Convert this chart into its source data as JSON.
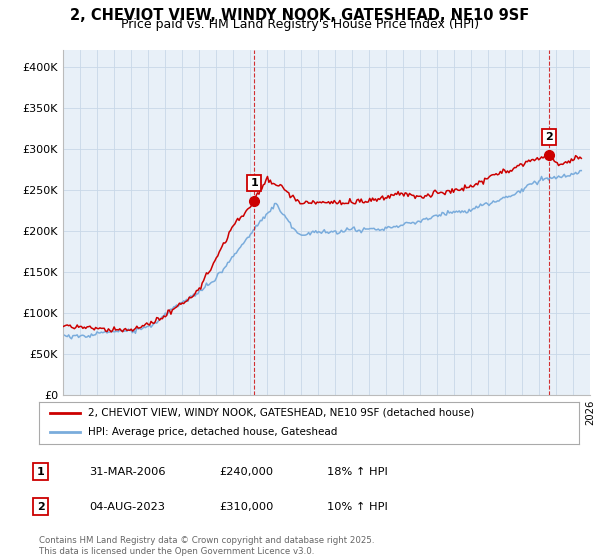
{
  "title_line1": "2, CHEVIOT VIEW, WINDY NOOK, GATESHEAD, NE10 9SF",
  "title_line2": "Price paid vs. HM Land Registry's House Price Index (HPI)",
  "ylim": [
    0,
    420000
  ],
  "yticks": [
    0,
    50000,
    100000,
    150000,
    200000,
    250000,
    300000,
    350000,
    400000
  ],
  "ytick_labels": [
    "£0",
    "£50K",
    "£100K",
    "£150K",
    "£200K",
    "£250K",
    "£300K",
    "£350K",
    "£400K"
  ],
  "red_color": "#cc0000",
  "blue_color": "#7aacdc",
  "sale1_date": 2006.25,
  "sale1_price": 240000,
  "sale1_label": "1",
  "sale2_date": 2023.58,
  "sale2_price": 310000,
  "sale2_label": "2",
  "legend_red": "2, CHEVIOT VIEW, WINDY NOOK, GATESHEAD, NE10 9SF (detached house)",
  "legend_blue": "HPI: Average price, detached house, Gateshead",
  "table_row1": [
    "1",
    "31-MAR-2006",
    "£240,000",
    "18% ↑ HPI"
  ],
  "table_row2": [
    "2",
    "04-AUG-2023",
    "£310,000",
    "10% ↑ HPI"
  ],
  "footnote": "Contains HM Land Registry data © Crown copyright and database right 2025.\nThis data is licensed under the Open Government Licence v3.0.",
  "xmin": 1995,
  "xmax": 2026,
  "bg_color": "#ffffff",
  "plot_bg": "#e8f0f8",
  "grid_color": "#c8d8e8",
  "title_fontsize": 10.5,
  "subtitle_fontsize": 9
}
